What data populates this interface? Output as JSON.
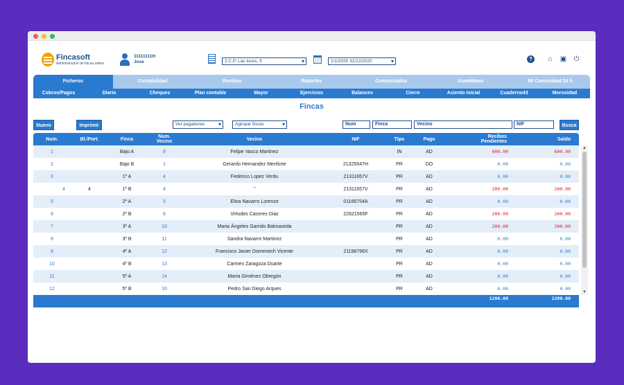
{
  "window": {
    "buttons": [
      "close",
      "minimize",
      "maximize"
    ]
  },
  "header": {
    "logo_name": "Fincasoft",
    "logo_sub": "Administración de fincas online",
    "user_id": "11111111H",
    "user_name": "Jose",
    "community": "3 C.P. Las luces, 9",
    "date_range": "1/1/2020  31/12/2020",
    "help_icon": "?",
    "home_icon": "⌂",
    "book_icon": "▣",
    "power_icon": "⏻"
  },
  "nav": {
    "tabs": [
      {
        "label": "Ficheros",
        "active": true
      },
      {
        "label": "Contabilidad"
      },
      {
        "label": "Recibos"
      },
      {
        "label": "Repartos"
      },
      {
        "label": "Comunicados"
      },
      {
        "label": "Asambleas"
      },
      {
        "label": "Mi Comunidad 24 h"
      }
    ],
    "subtabs": [
      "Cobros/Pagos",
      "Diario",
      "Cheques",
      "Plan contable",
      "Mayor",
      "Ejercicios",
      "Balances",
      "Cierre",
      "Asiento inicial",
      "Cuaderno43",
      "Morosidad"
    ]
  },
  "page_title": "Fincas",
  "toolbar": {
    "nuevo": "Nuevo",
    "imprimir": "Imprimir",
    "ver_pagadores": "Ver pagadores",
    "agrupar_fincas": "Agrupar fincas",
    "num_placeholder": "Num",
    "finca_placeholder": "Finca",
    "vecino_placeholder": "Vecino",
    "nif_placeholder": "NIF",
    "busca": "Busca"
  },
  "table": {
    "headers": {
      "num": "Num.",
      "bl": "Bl./Port.",
      "finca": "Finca",
      "num_vecino_1": "Num.",
      "num_vecino_2": "Vecino",
      "vecino": "Vecino",
      "nif": "NIF",
      "tipo": "Tipo",
      "pago": "Pago",
      "recibos_1": "Recibos",
      "recibos_2": "Pendientes",
      "saldo": "Saldo"
    },
    "rows": [
      {
        "num": "1",
        "bl": "",
        "finca": "Bajo A",
        "num_vecino": "8",
        "vecino": "Felipe Vasco Martinez",
        "nif": "",
        "tipo": "IN",
        "pago": "AD",
        "recibos": "600.00",
        "saldo": "600.00"
      },
      {
        "num": "2",
        "bl": "",
        "finca": "Bajo B",
        "num_vecino": "1",
        "vecino": "Gerardo Hernandez Menforte",
        "nif": "21325547H",
        "tipo": "PR",
        "pago": "DO",
        "recibos": "0.00",
        "saldo": "0.00"
      },
      {
        "num": "3",
        "bl": "",
        "finca": "1º A",
        "num_vecino": "4",
        "vecino": "Federico Lopez Verdu",
        "nif": "21311657V",
        "tipo": "PR",
        "pago": "AD",
        "recibos": "0.00",
        "saldo": "0.00"
      },
      {
        "num": "4",
        "bl": "4",
        "finca": "1º B",
        "num_vecino": "4",
        "vecino": "'          '",
        "nif": "21311657V",
        "tipo": "PR",
        "pago": "AD",
        "recibos": "200.00",
        "saldo": "200.00"
      },
      {
        "num": "5",
        "bl": "",
        "finca": "2º A",
        "num_vecino": "5",
        "vecino": "Elisa Navarro Lorenzo",
        "nif": "01166754A",
        "tipo": "PR",
        "pago": "AD",
        "recibos": "0.00",
        "saldo": "0.00"
      },
      {
        "num": "6",
        "bl": "",
        "finca": "2º B",
        "num_vecino": "6",
        "vecino": "Virtudes Caceres Diaz",
        "nif": "22621565F",
        "tipo": "PR",
        "pago": "AD",
        "recibos": "200.00",
        "saldo": "200.00"
      },
      {
        "num": "7",
        "bl": "",
        "finca": "3º A",
        "num_vecino": "10",
        "vecino": "Maria Ángeles Garrido Balmaseda",
        "nif": "",
        "tipo": "PR",
        "pago": "AD",
        "recibos": "200.00",
        "saldo": "200.00"
      },
      {
        "num": "8",
        "bl": "",
        "finca": "3º B",
        "num_vecino": "11",
        "vecino": "Sandra Navarro Martinez",
        "nif": "",
        "tipo": "PR",
        "pago": "AD",
        "recibos": "0.00",
        "saldo": "0.00"
      },
      {
        "num": "9",
        "bl": "",
        "finca": "4º A",
        "num_vecino": "12",
        "vecino": "Francisco Javier Domenech Vicente",
        "nif": "21198796X",
        "tipo": "PR",
        "pago": "AD",
        "recibos": "0.00",
        "saldo": "0.00"
      },
      {
        "num": "10",
        "bl": "",
        "finca": "4º B",
        "num_vecino": "13",
        "vecino": "Carmen Zaragoza Duarte",
        "nif": "",
        "tipo": "PR",
        "pago": "AD",
        "recibos": "0.00",
        "saldo": "0.00"
      },
      {
        "num": "11",
        "bl": "",
        "finca": "5º A",
        "num_vecino": "14",
        "vecino": "María Giménez Obregón",
        "nif": "",
        "tipo": "PR",
        "pago": "AD",
        "recibos": "0.00",
        "saldo": "0.00"
      },
      {
        "num": "12",
        "bl": "",
        "finca": "5º B",
        "num_vecino": "16",
        "vecino": "Pedro San Diego Arques",
        "nif": "",
        "tipo": "PR",
        "pago": "AD",
        "recibos": "0.00",
        "saldo": "0.00"
      }
    ],
    "totals": {
      "recibos": "1200.00",
      "saldo": "1200.00"
    }
  },
  "colors": {
    "primary": "#2a7ad0",
    "accent_red": "#e0151a",
    "background": "#5b2dbf"
  }
}
